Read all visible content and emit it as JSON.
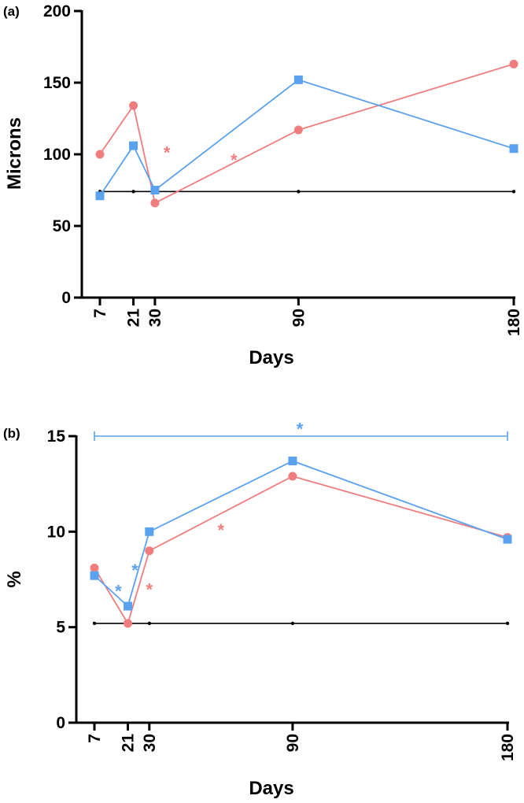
{
  "colors": {
    "blue": "#5aa1ef",
    "red": "#f07d7d",
    "axis": "#000000",
    "baseline": "#000000"
  },
  "chart_data": [
    {
      "type": "line",
      "panel_label": "(a)",
      "xlabel": "Days",
      "ylabel": "Microns",
      "x": [
        7,
        21,
        30,
        90,
        180
      ],
      "x_tick_labels": [
        "7",
        "21",
        "30",
        "90",
        "180"
      ],
      "xlim": [
        7,
        180
      ],
      "ylim": [
        0,
        200
      ],
      "y_ticks": [
        0,
        50,
        100,
        150,
        200
      ],
      "y_tick_labels": [
        "0",
        "50",
        "100",
        "150",
        "200"
      ],
      "series": [
        {
          "name": "red",
          "color_key": "red",
          "marker": "circle",
          "values": [
            100,
            134,
            66,
            117,
            163
          ]
        },
        {
          "name": "blue",
          "color_key": "blue",
          "marker": "square",
          "values": [
            71,
            106,
            75,
            152,
            104
          ]
        }
      ],
      "baseline": {
        "value": 74
      },
      "annotations": [
        {
          "text": "*",
          "color_key": "red",
          "x": 35,
          "y": 104
        },
        {
          "text": "*",
          "color_key": "red",
          "x": 63,
          "y": 99
        }
      ],
      "bracket": null
    },
    {
      "type": "line",
      "panel_label": "(b)",
      "xlabel": "Days",
      "ylabel": "%",
      "x": [
        7,
        21,
        30,
        90,
        180
      ],
      "x_tick_labels": [
        "7",
        "21",
        "30",
        "90",
        "180"
      ],
      "xlim": [
        7,
        180
      ],
      "ylim": [
        0,
        15
      ],
      "y_ticks": [
        0,
        5,
        10,
        15
      ],
      "y_tick_labels": [
        "0",
        "5",
        "10",
        "15"
      ],
      "series": [
        {
          "name": "red",
          "color_key": "red",
          "marker": "circle",
          "values": [
            8.1,
            5.2,
            9.0,
            12.9,
            9.7
          ]
        },
        {
          "name": "blue",
          "color_key": "blue",
          "marker": "square",
          "values": [
            7.7,
            6.1,
            10.0,
            13.7,
            9.6
          ]
        }
      ],
      "baseline": {
        "value": 5.2
      },
      "annotations": [
        {
          "text": "*",
          "color_key": "blue",
          "x": 17,
          "y": 7.1
        },
        {
          "text": "*",
          "color_key": "blue",
          "x": 24,
          "y": 8.2
        },
        {
          "text": "*",
          "color_key": "red",
          "x": 30,
          "y": 7.2
        },
        {
          "text": "*",
          "color_key": "red",
          "x": 60,
          "y": 10.3
        },
        {
          "text": "*",
          "color_key": "blue",
          "x": 93,
          "y": 15.6
        }
      ],
      "bracket": {
        "color_key": "blue",
        "from": 7,
        "to": 180,
        "y": 15
      }
    }
  ]
}
